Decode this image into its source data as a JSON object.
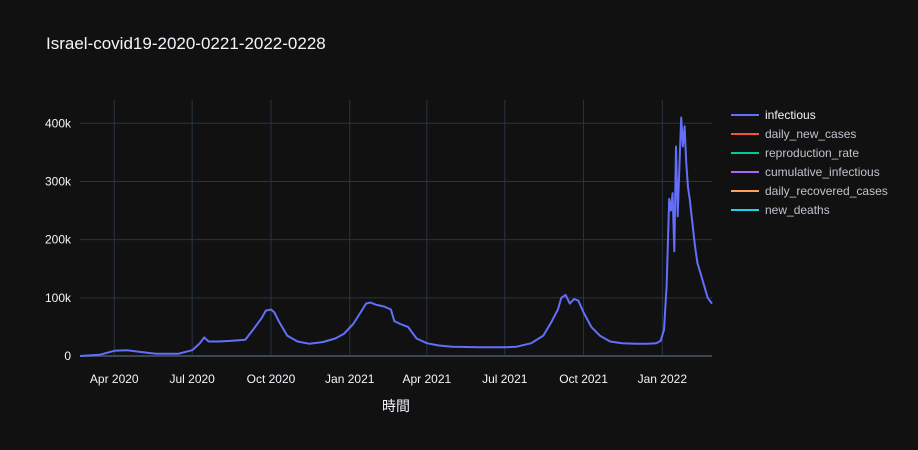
{
  "chart_data": {
    "type": "line",
    "title": "Israel-covid19-2020-0221-2022-0228",
    "xlabel": "時間",
    "ylabel": "",
    "x_range": [
      "2020-02-21",
      "2022-02-28"
    ],
    "ylim": [
      0,
      440000
    ],
    "grid": true,
    "legend_position": "top-right",
    "x_tick_labels": [
      "Apr 2020",
      "Jul 2020",
      "Oct 2020",
      "Jan 2021",
      "Apr 2021",
      "Jul 2021",
      "Oct 2021",
      "Jan 2022"
    ],
    "x_tick_dates": [
      "2020-04-01",
      "2020-07-01",
      "2020-10-01",
      "2021-01-01",
      "2021-04-01",
      "2021-07-01",
      "2021-10-01",
      "2022-01-01"
    ],
    "y_ticks": [
      0,
      100000,
      200000,
      300000,
      400000
    ],
    "y_tick_labels": [
      "0",
      "100k",
      "200k",
      "300k",
      "400k"
    ],
    "series": [
      {
        "name": "infectious",
        "color": "#636efa",
        "x": [
          "2020-02-21",
          "2020-03-15",
          "2020-04-01",
          "2020-04-15",
          "2020-05-01",
          "2020-05-20",
          "2020-06-15",
          "2020-07-01",
          "2020-07-10",
          "2020-07-15",
          "2020-07-20",
          "2020-08-01",
          "2020-08-15",
          "2020-09-01",
          "2020-09-10",
          "2020-09-20",
          "2020-09-25",
          "2020-10-01",
          "2020-10-05",
          "2020-10-10",
          "2020-10-20",
          "2020-11-01",
          "2020-11-15",
          "2020-12-01",
          "2020-12-15",
          "2020-12-25",
          "2021-01-05",
          "2021-01-15",
          "2021-01-20",
          "2021-01-25",
          "2021-02-01",
          "2021-02-10",
          "2021-02-18",
          "2021-02-22",
          "2021-03-01",
          "2021-03-10",
          "2021-03-20",
          "2021-04-01",
          "2021-04-15",
          "2021-05-01",
          "2021-06-01",
          "2021-07-01",
          "2021-07-15",
          "2021-08-01",
          "2021-08-15",
          "2021-08-25",
          "2021-09-01",
          "2021-09-05",
          "2021-09-10",
          "2021-09-15",
          "2021-09-20",
          "2021-09-25",
          "2021-10-01",
          "2021-10-10",
          "2021-10-20",
          "2021-11-01",
          "2021-11-15",
          "2021-12-01",
          "2021-12-15",
          "2021-12-25",
          "2021-12-30",
          "2022-01-03",
          "2022-01-06",
          "2022-01-09",
          "2022-01-11",
          "2022-01-13",
          "2022-01-15",
          "2022-01-17",
          "2022-01-19",
          "2022-01-21",
          "2022-01-23",
          "2022-01-25",
          "2022-01-27",
          "2022-01-29",
          "2022-01-31",
          "2022-02-02",
          "2022-02-05",
          "2022-02-08",
          "2022-02-11",
          "2022-02-15",
          "2022-02-19",
          "2022-02-23",
          "2022-02-28"
        ],
        "y": [
          0,
          2000,
          9000,
          10000,
          7000,
          4000,
          4000,
          10000,
          22000,
          32000,
          25000,
          25000,
          26000,
          28000,
          45000,
          65000,
          78000,
          80000,
          75000,
          60000,
          35000,
          25000,
          21000,
          24000,
          30000,
          38000,
          55000,
          78000,
          90000,
          92000,
          88000,
          85000,
          80000,
          60000,
          55000,
          50000,
          30000,
          22000,
          18000,
          16000,
          15000,
          15000,
          16000,
          22000,
          35000,
          60000,
          80000,
          100000,
          105000,
          90000,
          98000,
          95000,
          75000,
          50000,
          35000,
          25000,
          22000,
          21000,
          21000,
          22000,
          26000,
          45000,
          120000,
          270000,
          250000,
          280000,
          180000,
          360000,
          240000,
          330000,
          410000,
          360000,
          395000,
          330000,
          290000,
          270000,
          230000,
          190000,
          160000,
          140000,
          120000,
          100000,
          90000
        ]
      },
      {
        "name": "daily_new_cases",
        "color": "#EF553B",
        "x": [],
        "y": []
      },
      {
        "name": "reproduction_rate",
        "color": "#00cc96",
        "x": [],
        "y": []
      },
      {
        "name": "cumulative_infectious",
        "color": "#ab63fa",
        "x": [],
        "y": []
      },
      {
        "name": "daily_recovered_cases",
        "color": "#FFA15A",
        "x": [],
        "y": []
      },
      {
        "name": "new_deaths",
        "color": "#19d3f3",
        "x": [],
        "y": []
      }
    ]
  },
  "colors": {
    "background": "#111111",
    "grid": "#283442",
    "text": "#f2f5fa"
  }
}
